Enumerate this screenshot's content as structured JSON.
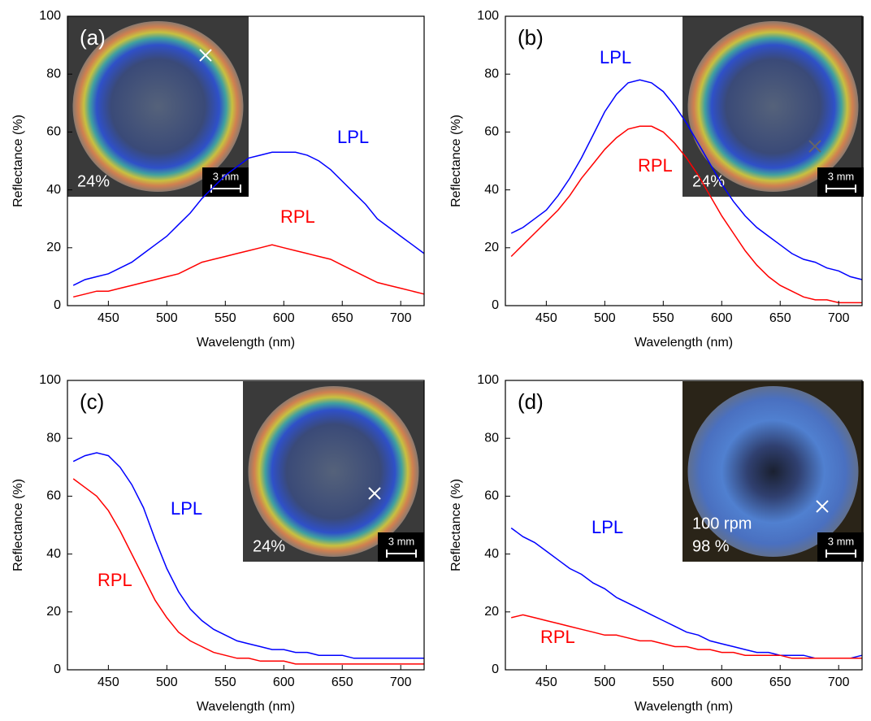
{
  "chart_data": [
    {
      "type": "line",
      "panel_label": "(a)",
      "xlabel": "Wavelength (nm)",
      "ylabel": "Reflectance (%)",
      "xlim": [
        415,
        720
      ],
      "ylim": [
        0,
        100
      ],
      "xticks": [
        450,
        500,
        550,
        600,
        650,
        700
      ],
      "yticks": [
        0,
        20,
        40,
        60,
        80,
        100
      ],
      "x": [
        420,
        430,
        440,
        450,
        460,
        470,
        480,
        490,
        500,
        510,
        520,
        530,
        540,
        550,
        560,
        570,
        580,
        590,
        600,
        610,
        620,
        630,
        640,
        650,
        660,
        670,
        680,
        690,
        700,
        710,
        720
      ],
      "series": [
        {
          "name": "LPL",
          "color": "#0000ff",
          "values": [
            7,
            9,
            10,
            11,
            13,
            15,
            18,
            21,
            24,
            28,
            32,
            37,
            41,
            45,
            48,
            51,
            52,
            53,
            53,
            53,
            52,
            50,
            47,
            43,
            39,
            35,
            30,
            27,
            24,
            21,
            18
          ]
        },
        {
          "name": "RPL",
          "color": "#ff0000",
          "values": [
            3,
            4,
            5,
            5,
            6,
            7,
            8,
            9,
            10,
            11,
            13,
            15,
            16,
            17,
            18,
            19,
            20,
            21,
            20,
            19,
            18,
            17,
            16,
            14,
            12,
            10,
            8,
            7,
            6,
            5,
            4
          ]
        }
      ],
      "inset": {
        "labels": [
          "24%"
        ],
        "scale": "3 mm"
      }
    },
    {
      "type": "line",
      "panel_label": "(b)",
      "xlabel": "Wavelength (nm)",
      "ylabel": "Reflectance (%)",
      "xlim": [
        415,
        720
      ],
      "ylim": [
        0,
        100
      ],
      "xticks": [
        450,
        500,
        550,
        600,
        650,
        700
      ],
      "yticks": [
        0,
        20,
        40,
        60,
        80,
        100
      ],
      "x": [
        420,
        430,
        440,
        450,
        460,
        470,
        480,
        490,
        500,
        510,
        520,
        530,
        540,
        550,
        560,
        570,
        580,
        590,
        600,
        610,
        620,
        630,
        640,
        650,
        660,
        670,
        680,
        690,
        700,
        710,
        720
      ],
      "series": [
        {
          "name": "LPL",
          "color": "#0000ff",
          "values": [
            25,
            27,
            30,
            33,
            38,
            44,
            51,
            59,
            67,
            73,
            77,
            78,
            77,
            74,
            69,
            63,
            56,
            49,
            42,
            36,
            31,
            27,
            24,
            21,
            18,
            16,
            15,
            13,
            12,
            10,
            9
          ]
        },
        {
          "name": "RPL",
          "color": "#ff0000",
          "values": [
            17,
            21,
            25,
            29,
            33,
            38,
            44,
            49,
            54,
            58,
            61,
            62,
            62,
            60,
            56,
            51,
            45,
            38,
            31,
            25,
            19,
            14,
            10,
            7,
            5,
            3,
            2,
            2,
            1,
            1,
            1
          ]
        }
      ],
      "inset": {
        "labels": [
          "24%"
        ],
        "scale": "3 mm"
      }
    },
    {
      "type": "line",
      "panel_label": "(c)",
      "xlabel": "Wavelength (nm)",
      "ylabel": "Reflectance (%)",
      "xlim": [
        415,
        720
      ],
      "ylim": [
        0,
        100
      ],
      "xticks": [
        450,
        500,
        550,
        600,
        650,
        700
      ],
      "yticks": [
        0,
        20,
        40,
        60,
        80,
        100
      ],
      "x": [
        420,
        430,
        440,
        450,
        460,
        470,
        480,
        490,
        500,
        510,
        520,
        530,
        540,
        550,
        560,
        570,
        580,
        590,
        600,
        610,
        620,
        630,
        640,
        650,
        660,
        670,
        680,
        690,
        700,
        710,
        720
      ],
      "series": [
        {
          "name": "LPL",
          "color": "#0000ff",
          "values": [
            72,
            74,
            75,
            74,
            70,
            64,
            56,
            45,
            35,
            27,
            21,
            17,
            14,
            12,
            10,
            9,
            8,
            7,
            7,
            6,
            6,
            5,
            5,
            5,
            4,
            4,
            4,
            4,
            4,
            4,
            4
          ]
        },
        {
          "name": "RPL",
          "color": "#ff0000",
          "values": [
            66,
            63,
            60,
            55,
            48,
            40,
            32,
            24,
            18,
            13,
            10,
            8,
            6,
            5,
            4,
            4,
            3,
            3,
            3,
            2,
            2,
            2,
            2,
            2,
            2,
            2,
            2,
            2,
            2,
            2,
            2
          ]
        }
      ],
      "inset": {
        "labels": [
          "24%"
        ],
        "scale": "3 mm"
      }
    },
    {
      "type": "line",
      "panel_label": "(d)",
      "xlabel": "Wavelength (nm)",
      "ylabel": "Reflectance (%)",
      "xlim": [
        415,
        720
      ],
      "ylim": [
        0,
        100
      ],
      "xticks": [
        450,
        500,
        550,
        600,
        650,
        700
      ],
      "yticks": [
        0,
        20,
        40,
        60,
        80,
        100
      ],
      "x": [
        420,
        430,
        440,
        450,
        460,
        470,
        480,
        490,
        500,
        510,
        520,
        530,
        540,
        550,
        560,
        570,
        580,
        590,
        600,
        610,
        620,
        630,
        640,
        650,
        660,
        670,
        680,
        690,
        700,
        710,
        720
      ],
      "series": [
        {
          "name": "LPL",
          "color": "#0000ff",
          "values": [
            49,
            46,
            44,
            41,
            38,
            35,
            33,
            30,
            28,
            25,
            23,
            21,
            19,
            17,
            15,
            13,
            12,
            10,
            9,
            8,
            7,
            6,
            6,
            5,
            5,
            5,
            4,
            4,
            4,
            4,
            5
          ]
        },
        {
          "name": "RPL",
          "color": "#ff0000",
          "values": [
            18,
            19,
            18,
            17,
            16,
            15,
            14,
            13,
            12,
            12,
            11,
            10,
            10,
            9,
            8,
            8,
            7,
            7,
            6,
            6,
            5,
            5,
            5,
            5,
            4,
            4,
            4,
            4,
            4,
            4,
            4
          ]
        }
      ],
      "inset": {
        "labels": [
          "100 rpm",
          "98 %"
        ],
        "scale": "3 mm"
      }
    }
  ]
}
